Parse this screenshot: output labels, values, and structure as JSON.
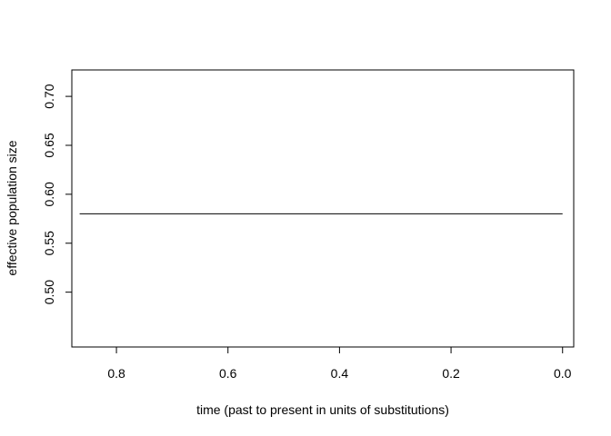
{
  "chart_data": {
    "type": "line",
    "title": "",
    "xlabel": "time (past to present in units of substitutions)",
    "ylabel": "effective population size",
    "x_reversed": true,
    "xlim": [
      0.88,
      -0.02
    ],
    "ylim": [
      0.444,
      0.727
    ],
    "x_ticks": [
      0.8,
      0.6,
      0.4,
      0.2,
      0.0
    ],
    "x_tick_labels": [
      "0.8",
      "0.6",
      "0.4",
      "0.2",
      "0.0"
    ],
    "y_ticks": [
      0.5,
      0.55,
      0.6,
      0.65,
      0.7
    ],
    "y_tick_labels": [
      "0.50",
      "0.55",
      "0.60",
      "0.65",
      "0.70"
    ],
    "grid": false,
    "legend": "none",
    "series": [
      {
        "x": [
          0.866,
          0.0
        ],
        "y": [
          0.58,
          0.58
        ],
        "color": "#000000"
      }
    ]
  }
}
